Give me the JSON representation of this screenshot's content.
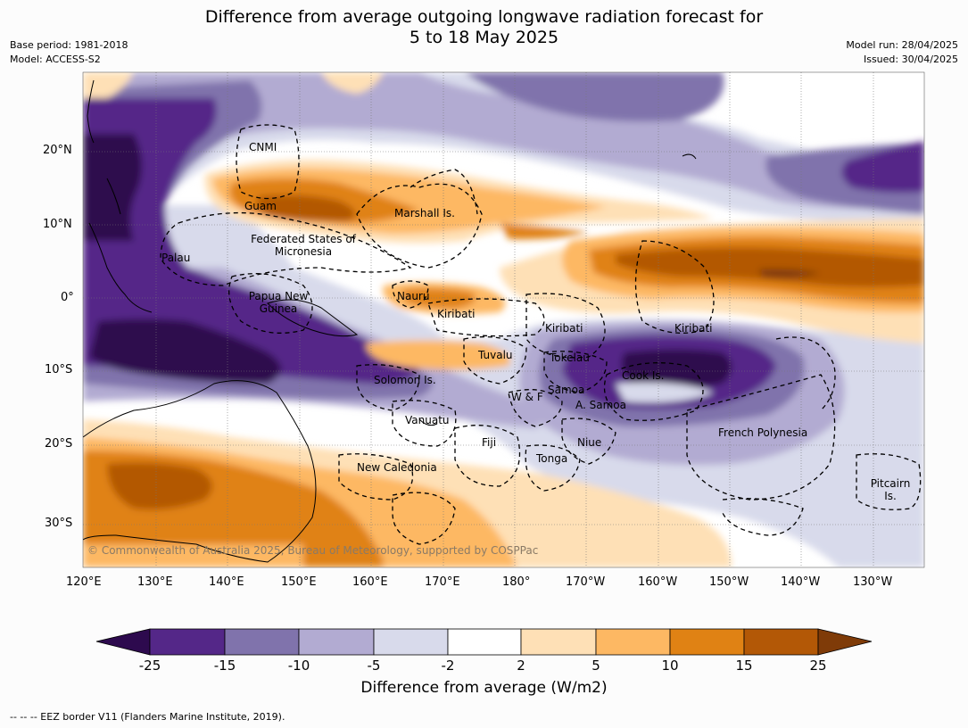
{
  "header": {
    "title_line1": "Difference from average outgoing longwave radiation forecast for",
    "title_line2": "5 to 18 May 2025",
    "base_period": "Base period: 1981-2018",
    "model": "Model: ACCESS-S2",
    "model_run": "Model run: 28/04/2025",
    "issued": "Issued: 30/04/2025"
  },
  "map": {
    "lat_labels": [
      "20°N",
      "10°N",
      "0°",
      "10°S",
      "20°S",
      "30°S"
    ],
    "lon_labels": [
      "120°E",
      "130°E",
      "140°E",
      "150°E",
      "160°E",
      "170°E",
      "180°",
      "170°W",
      "160°W",
      "150°W",
      "140°W",
      "130°W"
    ],
    "regions": [
      {
        "name": "CNMI"
      },
      {
        "name": "Guam"
      },
      {
        "name": "Marshall Is."
      },
      {
        "name": "Federated States of Micronesia"
      },
      {
        "name": "Palau"
      },
      {
        "name": "Papua New Guinea"
      },
      {
        "name": "Nauru"
      },
      {
        "name": "Kiribati"
      },
      {
        "name": "Kiribati"
      },
      {
        "name": "Kiribati"
      },
      {
        "name": "Tuvalu"
      },
      {
        "name": "Tokelau"
      },
      {
        "name": "Cook Is."
      },
      {
        "name": "Solomon Is."
      },
      {
        "name": "Samoa"
      },
      {
        "name": "W & F"
      },
      {
        "name": "A. Samoa"
      },
      {
        "name": "Vanuatu"
      },
      {
        "name": "Fiji"
      },
      {
        "name": "Niue"
      },
      {
        "name": "French Polynesia"
      },
      {
        "name": "Tonga"
      },
      {
        "name": "New Caledonia"
      },
      {
        "name": "Pitcairn Is."
      }
    ],
    "credit": "© Commonwealth of Australia 2025, Bureau of Meteorology, supported by COSPPac"
  },
  "colorbar": {
    "title": "Difference from average (W/m2)",
    "ticks": [
      "-25",
      "-15",
      "-10",
      "-5",
      "-2",
      "2",
      "5",
      "10",
      "15",
      "25"
    ],
    "colors": [
      "#2d0a4e",
      "#542788",
      "#8073ac",
      "#b2abd2",
      "#d8daeb",
      "#ffffff",
      "#fee0b6",
      "#fdb863",
      "#e08214",
      "#b35806",
      "#7f3b08"
    ]
  },
  "footnote": "--  --  -- EEZ border V11 (Flanders Marine Institute, 2019)."
}
